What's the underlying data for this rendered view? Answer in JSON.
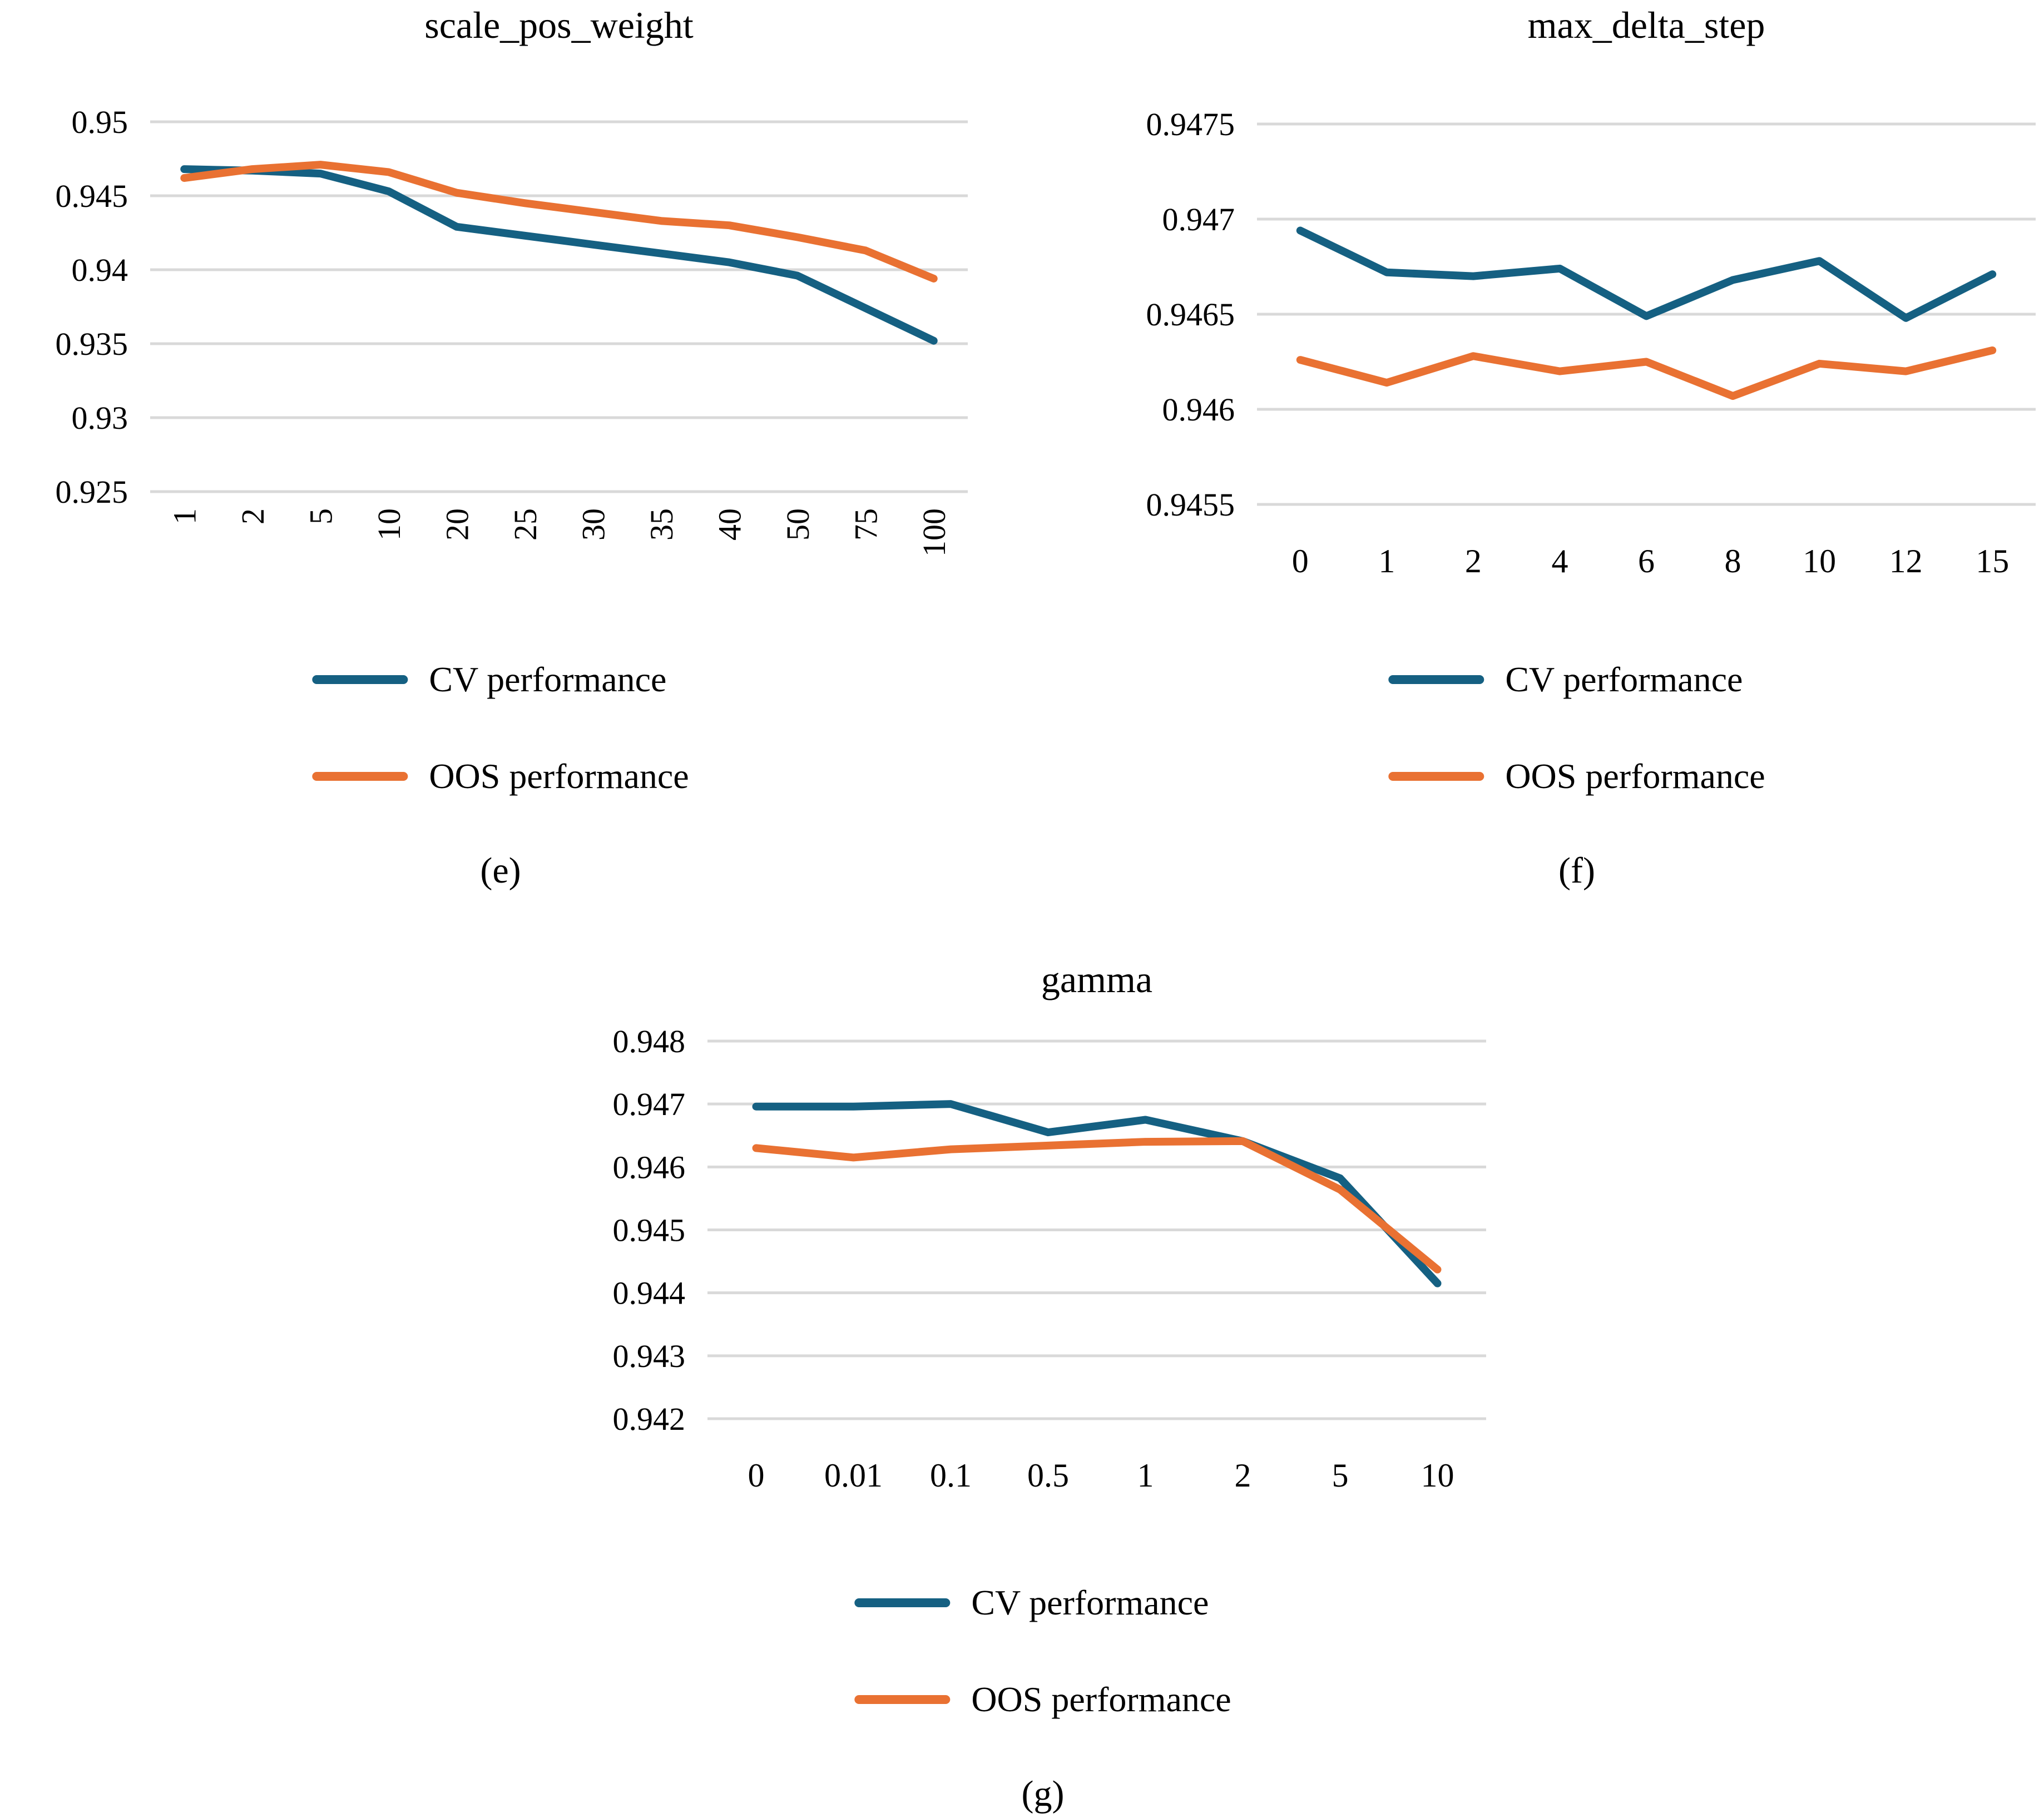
{
  "page": {
    "background": "#ffffff",
    "grid_color": "#D9D9D9",
    "text_color": "#000000"
  },
  "chart_data": [
    {
      "id": "e",
      "type": "line",
      "title": "scale_pos_weight",
      "caption": "(e)",
      "legend_position": "bottom",
      "grid": true,
      "x_tick_rotation": -90,
      "categories": [
        "1",
        "2",
        "5",
        "10",
        "20",
        "25",
        "30",
        "35",
        "40",
        "50",
        "75",
        "100"
      ],
      "ylim": [
        0.925,
        0.95
      ],
      "yticks": [
        0.95,
        0.945,
        0.94,
        0.935,
        0.93,
        0.925
      ],
      "ytick_labels": [
        "0.95",
        "0.945",
        "0.94",
        "0.935",
        "0.93",
        "0.925"
      ],
      "series": [
        {
          "name": "CV performance",
          "color": "#156082",
          "values": [
            0.9468,
            0.9467,
            0.9465,
            0.9453,
            0.9429,
            0.9423,
            0.9417,
            0.9411,
            0.9405,
            0.9396,
            0.9374,
            0.9352
          ]
        },
        {
          "name": "OOS performance",
          "color": "#E97132",
          "values": [
            0.9462,
            0.9468,
            0.9471,
            0.9466,
            0.9452,
            0.9445,
            0.9439,
            0.9433,
            0.943,
            0.9422,
            0.9413,
            0.9394
          ]
        }
      ]
    },
    {
      "id": "f",
      "type": "line",
      "title": "max_delta_step",
      "caption": "(f)",
      "legend_position": "bottom",
      "grid": true,
      "x_tick_rotation": 0,
      "categories": [
        "0",
        "1",
        "2",
        "4",
        "6",
        "8",
        "10",
        "12",
        "15"
      ],
      "ylim": [
        0.9455,
        0.9475
      ],
      "yticks": [
        0.9475,
        0.947,
        0.9465,
        0.946,
        0.9455
      ],
      "ytick_labels": [
        "0.9475",
        "0.947",
        "0.9465",
        "0.946",
        "0.9455"
      ],
      "series": [
        {
          "name": "CV performance",
          "color": "#156082",
          "values": [
            0.94694,
            0.94672,
            0.9467,
            0.94674,
            0.94649,
            0.94668,
            0.94678,
            0.94648,
            0.94671
          ]
        },
        {
          "name": "OOS performance",
          "color": "#E97132",
          "values": [
            0.94626,
            0.94614,
            0.94628,
            0.9462,
            0.94625,
            0.94607,
            0.94624,
            0.9462,
            0.94631
          ]
        }
      ]
    },
    {
      "id": "g",
      "type": "line",
      "title": "gamma",
      "caption": "(g)",
      "legend_position": "bottom",
      "grid": true,
      "x_tick_rotation": 0,
      "categories": [
        "0",
        "0.01",
        "0.1",
        "0.5",
        "1",
        "2",
        "5",
        "10"
      ],
      "ylim": [
        0.942,
        0.948
      ],
      "yticks": [
        0.948,
        0.947,
        0.946,
        0.945,
        0.944,
        0.943,
        0.942
      ],
      "ytick_labels": [
        "0.948",
        "0.947",
        "0.946",
        "0.945",
        "0.944",
        "0.943",
        "0.942"
      ],
      "series": [
        {
          "name": "CV performance",
          "color": "#156082",
          "values": [
            0.94696,
            0.94696,
            0.947,
            0.94655,
            0.94675,
            0.94641,
            0.94582,
            0.94415
          ]
        },
        {
          "name": "OOS performance",
          "color": "#E97132",
          "values": [
            0.9463,
            0.94615,
            0.94628,
            0.94634,
            0.9464,
            0.94641,
            0.94564,
            0.94437
          ]
        }
      ]
    }
  ]
}
